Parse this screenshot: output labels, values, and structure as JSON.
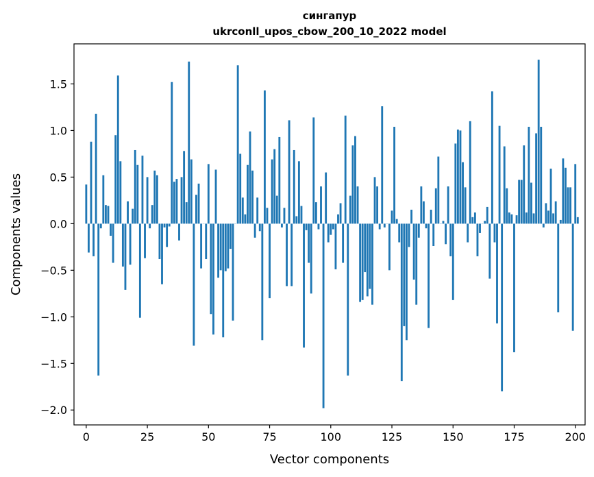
{
  "chart_data": {
    "type": "bar",
    "title_line1": "сингапур",
    "title_line2": "ukrconll_upos_cbow_200_10_2022 model",
    "xlabel": "Vector components",
    "ylabel": "Components values",
    "xlim": [
      -5,
      204
    ],
    "ylim": [
      -2.16,
      1.93
    ],
    "xticks": [
      0,
      25,
      50,
      75,
      100,
      125,
      150,
      175,
      200
    ],
    "yticks": [
      -2.0,
      -1.5,
      -1.0,
      -0.5,
      0.0,
      0.5,
      1.0,
      1.5
    ],
    "ytick_labels": [
      "−2.0",
      "−1.5",
      "−1.0",
      "−0.5",
      "0.0",
      "0.5",
      "1.0",
      "1.5"
    ],
    "bar_color": "#1f77b4",
    "grid": false,
    "values": [
      0.42,
      -0.31,
      0.88,
      -0.35,
      1.18,
      -1.63,
      -0.05,
      0.52,
      0.2,
      0.19,
      -0.13,
      -0.42,
      0.95,
      1.59,
      0.67,
      -0.46,
      -0.71,
      0.24,
      -0.44,
      0.16,
      0.79,
      0.63,
      -1.01,
      0.73,
      -0.37,
      0.5,
      -0.05,
      0.2,
      0.57,
      0.52,
      -0.38,
      -0.65,
      -0.04,
      -0.25,
      -0.03,
      1.52,
      0.45,
      0.48,
      -0.18,
      0.5,
      0.78,
      0.23,
      1.74,
      0.69,
      -1.31,
      0.31,
      0.43,
      -0.48,
      0.0,
      -0.38,
      0.64,
      -0.97,
      -1.19,
      0.58,
      -0.58,
      -0.5,
      -1.22,
      -0.51,
      -0.48,
      -0.27,
      -1.04,
      0.0,
      1.7,
      0.75,
      0.28,
      0.1,
      0.63,
      0.99,
      0.57,
      -0.15,
      0.28,
      -0.08,
      -1.25,
      1.43,
      0.17,
      -0.8,
      0.69,
      0.8,
      0.3,
      0.93,
      -0.04,
      0.17,
      -0.67,
      1.11,
      -0.67,
      0.79,
      0.08,
      0.67,
      0.19,
      -1.33,
      -0.07,
      -0.42,
      -0.75,
      1.14,
      0.23,
      -0.06,
      0.4,
      -1.98,
      0.55,
      -0.2,
      -0.12,
      -0.06,
      -0.49,
      0.1,
      0.22,
      -0.42,
      1.16,
      -1.63,
      0.3,
      0.84,
      0.94,
      0.4,
      -0.84,
      -0.82,
      -0.52,
      -0.78,
      -0.7,
      -0.87,
      0.5,
      0.4,
      -0.06,
      1.26,
      -0.04,
      0.0,
      -0.5,
      0.14,
      1.04,
      0.05,
      -0.2,
      -1.69,
      -1.1,
      -1.25,
      -0.25,
      0.15,
      -0.6,
      -0.87,
      -0.15,
      0.4,
      0.24,
      -0.05,
      -1.12,
      0.15,
      -0.24,
      0.38,
      0.72,
      0.0,
      0.03,
      -0.22,
      0.4,
      -0.35,
      -0.82,
      0.86,
      1.01,
      1.0,
      0.66,
      0.39,
      -0.2,
      1.1,
      0.07,
      0.12,
      -0.35,
      -0.1,
      0.0,
      0.03,
      0.18,
      -0.59,
      1.42,
      -0.2,
      -1.07,
      1.05,
      -1.8,
      0.83,
      0.38,
      0.12,
      0.1,
      -1.38,
      0.09,
      0.47,
      0.47,
      0.84,
      0.12,
      1.04,
      0.44,
      0.11,
      0.97,
      1.76,
      1.04,
      -0.04,
      0.22,
      0.14,
      0.59,
      0.11,
      0.24,
      -0.95,
      0.04,
      0.7,
      0.6,
      0.39,
      0.39,
      -1.15,
      0.64,
      0.07
    ]
  }
}
